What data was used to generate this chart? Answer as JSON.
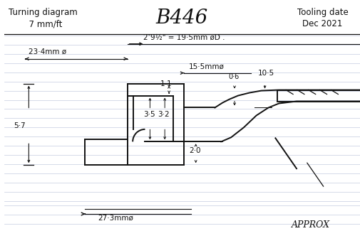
{
  "title": "B446",
  "text_left1": "Turning diagram",
  "text_left2": "  7 mm/ft",
  "text_right1": "Tooling date",
  "text_right2": "Dec 2021",
  "bg_color": "#ffffff",
  "line_color": "#111111",
  "ruled_color": "#c5cce0",
  "annotations": {
    "dim1": "2’9½\" = 19·5mm øD .",
    "dim2": "23·4mm ø",
    "dim3": "15·5mmø",
    "dim4": "0·6",
    "dim5": "10·5",
    "dim6": "1·1",
    "dim7": "3·5",
    "dim8": "3·2",
    "dim9": "5·7",
    "dim10": "2·0",
    "dim11": "27·3mmø",
    "approx": "APPROX"
  }
}
